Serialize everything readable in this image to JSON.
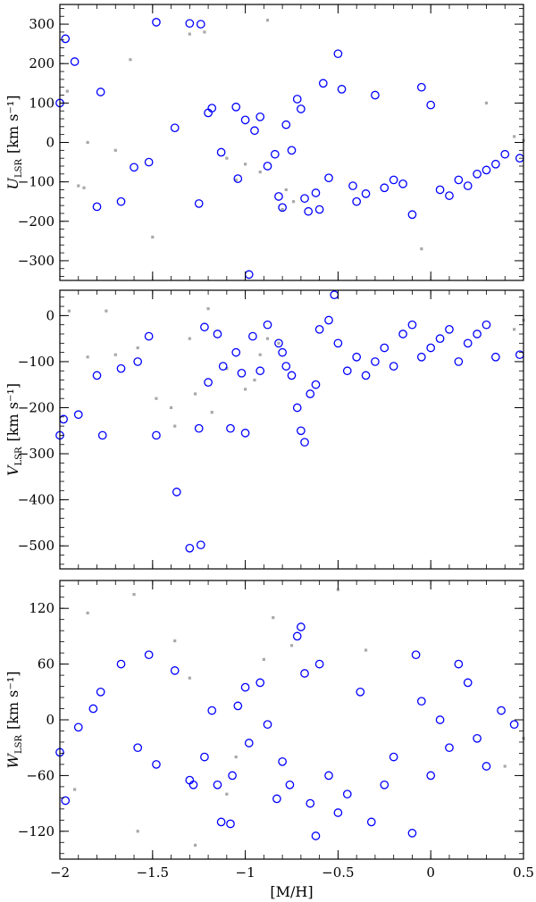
{
  "chart_data": [
    {
      "type": "scatter",
      "panel": "top",
      "ylabel_main": "U",
      "ylabel_sub": "LSR",
      "ylabel_unit": "[km s⁻¹]",
      "xlim": [
        -2.0,
        0.5
      ],
      "ylim": [
        -350,
        350
      ],
      "xticks": [
        -2,
        -1.5,
        -1,
        -0.5,
        0,
        0.5
      ],
      "yticks": [
        -300,
        -200,
        -100,
        0,
        100,
        200,
        300
      ],
      "ytick_labels": [
        "−300",
        "−200",
        "−100",
        "0",
        "100",
        "200",
        "300"
      ],
      "grid": false,
      "series": [
        {
          "marker": "open-circle",
          "color": "#0000ff",
          "points": [
            [
              -2.0,
              100
            ],
            [
              -1.97,
              263
            ],
            [
              -1.92,
              205
            ],
            [
              -1.78,
              128
            ],
            [
              -1.8,
              -163
            ],
            [
              -1.67,
              -150
            ],
            [
              -1.6,
              -63
            ],
            [
              -1.52,
              -50
            ],
            [
              -1.48,
              305
            ],
            [
              -1.38,
              37
            ],
            [
              -1.3,
              302
            ],
            [
              -1.24,
              300
            ],
            [
              -1.25,
              -155
            ],
            [
              -1.2,
              75
            ],
            [
              -1.18,
              87
            ],
            [
              -1.13,
              -25
            ],
            [
              -1.05,
              90
            ],
            [
              -1.04,
              -92
            ],
            [
              -1.0,
              57
            ],
            [
              -0.98,
              -335
            ],
            [
              -0.95,
              30
            ],
            [
              -0.92,
              65
            ],
            [
              -0.88,
              -60
            ],
            [
              -0.84,
              -30
            ],
            [
              -0.82,
              -137
            ],
            [
              -0.8,
              -165
            ],
            [
              -0.78,
              45
            ],
            [
              -0.75,
              -20
            ],
            [
              -0.72,
              110
            ],
            [
              -0.7,
              85
            ],
            [
              -0.68,
              -142
            ],
            [
              -0.66,
              -175
            ],
            [
              -0.62,
              -128
            ],
            [
              -0.6,
              -170
            ],
            [
              -0.58,
              150
            ],
            [
              -0.55,
              -90
            ],
            [
              -0.5,
              225
            ],
            [
              -0.48,
              135
            ],
            [
              -0.42,
              -110
            ],
            [
              -0.4,
              -150
            ],
            [
              -0.35,
              -130
            ],
            [
              -0.3,
              120
            ],
            [
              -0.25,
              -115
            ],
            [
              -0.2,
              -95
            ],
            [
              -0.15,
              -105
            ],
            [
              -0.1,
              -183
            ],
            [
              -0.05,
              140
            ],
            [
              0.0,
              95
            ],
            [
              0.05,
              -120
            ],
            [
              0.1,
              -135
            ],
            [
              0.15,
              -95
            ],
            [
              0.2,
              -110
            ],
            [
              0.25,
              -80
            ],
            [
              0.3,
              -70
            ],
            [
              0.35,
              -55
            ],
            [
              0.4,
              -30
            ],
            [
              0.48,
              -40
            ]
          ]
        },
        {
          "marker": "small-square",
          "color": "#a8a8a8",
          "points": [
            [
              -1.96,
              130
            ],
            [
              -1.9,
              -110
            ],
            [
              -1.87,
              -115
            ],
            [
              -1.85,
              0
            ],
            [
              -1.7,
              -20
            ],
            [
              -1.62,
              210
            ],
            [
              -1.5,
              -240
            ],
            [
              -1.3,
              275
            ],
            [
              -1.22,
              280
            ],
            [
              -1.1,
              -40
            ],
            [
              -1.05,
              -95
            ],
            [
              -1.0,
              -55
            ],
            [
              -0.92,
              -75
            ],
            [
              -0.88,
              310
            ],
            [
              -0.8,
              -170
            ],
            [
              -0.78,
              -120
            ],
            [
              -0.74,
              -150
            ],
            [
              -0.05,
              -270
            ],
            [
              0.3,
              100
            ],
            [
              0.45,
              15
            ],
            [
              0.5,
              5
            ]
          ]
        }
      ]
    },
    {
      "type": "scatter",
      "panel": "middle",
      "ylabel_main": "V",
      "ylabel_sub": "LSR",
      "ylabel_unit": "[km s⁻¹]",
      "xlim": [
        -2.0,
        0.5
      ],
      "ylim": [
        -550,
        55
      ],
      "xticks": [
        -2,
        -1.5,
        -1,
        -0.5,
        0,
        0.5
      ],
      "yticks": [
        -500,
        -400,
        -300,
        -200,
        -100,
        0
      ],
      "ytick_labels": [
        "−500",
        "−400",
        "−300",
        "−200",
        "−100",
        "0"
      ],
      "grid": false,
      "series": [
        {
          "marker": "open-circle",
          "color": "#0000ff",
          "points": [
            [
              -2.0,
              -260
            ],
            [
              -1.98,
              -225
            ],
            [
              -1.9,
              -215
            ],
            [
              -1.8,
              -130
            ],
            [
              -1.77,
              -260
            ],
            [
              -1.67,
              -115
            ],
            [
              -1.58,
              -100
            ],
            [
              -1.52,
              -45
            ],
            [
              -1.48,
              -260
            ],
            [
              -1.37,
              -383
            ],
            [
              -1.3,
              -505
            ],
            [
              -1.24,
              -498
            ],
            [
              -1.25,
              -245
            ],
            [
              -1.22,
              -25
            ],
            [
              -1.2,
              -145
            ],
            [
              -1.15,
              -40
            ],
            [
              -1.12,
              -110
            ],
            [
              -1.08,
              -245
            ],
            [
              -1.05,
              -80
            ],
            [
              -1.02,
              -125
            ],
            [
              -1.0,
              -255
            ],
            [
              -0.96,
              -45
            ],
            [
              -0.92,
              -120
            ],
            [
              -0.88,
              -20
            ],
            [
              -0.82,
              -60
            ],
            [
              -0.8,
              -80
            ],
            [
              -0.78,
              -110
            ],
            [
              -0.75,
              -130
            ],
            [
              -0.72,
              -200
            ],
            [
              -0.7,
              -250
            ],
            [
              -0.68,
              -275
            ],
            [
              -0.65,
              -170
            ],
            [
              -0.62,
              -150
            ],
            [
              -0.6,
              -30
            ],
            [
              -0.55,
              -10
            ],
            [
              -0.52,
              45
            ],
            [
              -0.5,
              -60
            ],
            [
              -0.45,
              -120
            ],
            [
              -0.4,
              -90
            ],
            [
              -0.35,
              -130
            ],
            [
              -0.3,
              -100
            ],
            [
              -0.25,
              -70
            ],
            [
              -0.2,
              -110
            ],
            [
              -0.15,
              -40
            ],
            [
              -0.1,
              -20
            ],
            [
              -0.05,
              -90
            ],
            [
              0.0,
              -70
            ],
            [
              0.05,
              -50
            ],
            [
              0.1,
              -30
            ],
            [
              0.15,
              -100
            ],
            [
              0.2,
              -60
            ],
            [
              0.25,
              -40
            ],
            [
              0.3,
              -20
            ],
            [
              0.35,
              -90
            ],
            [
              0.48,
              -85
            ]
          ]
        },
        {
          "marker": "small-square",
          "color": "#a8a8a8",
          "points": [
            [
              -1.95,
              10
            ],
            [
              -1.85,
              -90
            ],
            [
              -1.75,
              10
            ],
            [
              -1.7,
              -85
            ],
            [
              -1.58,
              -70
            ],
            [
              -1.48,
              -180
            ],
            [
              -1.4,
              -200
            ],
            [
              -1.38,
              -240
            ],
            [
              -1.3,
              -50
            ],
            [
              -1.27,
              -170
            ],
            [
              -1.2,
              15
            ],
            [
              -1.18,
              -210
            ],
            [
              -1.1,
              -115
            ],
            [
              -1.0,
              -160
            ],
            [
              -0.95,
              -140
            ],
            [
              -0.92,
              -85
            ],
            [
              -0.88,
              -50
            ],
            [
              -0.82,
              -60
            ],
            [
              0.45,
              -30
            ],
            [
              0.5,
              -10
            ]
          ]
        }
      ]
    },
    {
      "type": "scatter",
      "panel": "bottom",
      "ylabel_main": "W",
      "ylabel_sub": "LSR",
      "ylabel_unit": "[km s⁻¹]",
      "xlabel": "[M/H]",
      "xlim": [
        -2.0,
        0.5
      ],
      "ylim": [
        -150,
        150
      ],
      "xticks": [
        -2,
        -1.5,
        -1,
        -0.5,
        0,
        0.5
      ],
      "xtick_labels": [
        "−2",
        "−1.5",
        "−1",
        "−0.5",
        "0",
        "0.5"
      ],
      "yticks": [
        -120,
        -60,
        0,
        60,
        120
      ],
      "ytick_labels": [
        "−120",
        "−60",
        "0",
        "60",
        "120"
      ],
      "grid": false,
      "series": [
        {
          "marker": "open-circle",
          "color": "#0000ff",
          "points": [
            [
              -2.0,
              -35
            ],
            [
              -1.97,
              -87
            ],
            [
              -1.9,
              -8
            ],
            [
              -1.82,
              12
            ],
            [
              -1.78,
              30
            ],
            [
              -1.67,
              60
            ],
            [
              -1.58,
              -30
            ],
            [
              -1.52,
              70
            ],
            [
              -1.48,
              -48
            ],
            [
              -1.38,
              53
            ],
            [
              -1.3,
              -65
            ],
            [
              -1.28,
              -70
            ],
            [
              -1.22,
              -40
            ],
            [
              -1.18,
              10
            ],
            [
              -1.15,
              -70
            ],
            [
              -1.13,
              -110
            ],
            [
              -1.08,
              -112
            ],
            [
              -1.07,
              -60
            ],
            [
              -1.04,
              15
            ],
            [
              -1.0,
              35
            ],
            [
              -0.98,
              -25
            ],
            [
              -0.92,
              40
            ],
            [
              -0.88,
              -5
            ],
            [
              -0.83,
              -85
            ],
            [
              -0.8,
              -45
            ],
            [
              -0.76,
              -70
            ],
            [
              -0.72,
              90
            ],
            [
              -0.7,
              100
            ],
            [
              -0.68,
              50
            ],
            [
              -0.65,
              -90
            ],
            [
              -0.62,
              -125
            ],
            [
              -0.6,
              60
            ],
            [
              -0.55,
              -60
            ],
            [
              -0.5,
              -100
            ],
            [
              -0.45,
              -80
            ],
            [
              -0.38,
              30
            ],
            [
              -0.32,
              -110
            ],
            [
              -0.25,
              -70
            ],
            [
              -0.2,
              -40
            ],
            [
              -0.1,
              -122
            ],
            [
              -0.08,
              70
            ],
            [
              -0.05,
              20
            ],
            [
              0.0,
              -60
            ],
            [
              0.05,
              0
            ],
            [
              0.1,
              -30
            ],
            [
              0.15,
              60
            ],
            [
              0.2,
              40
            ],
            [
              0.25,
              -20
            ],
            [
              0.3,
              -50
            ],
            [
              0.38,
              10
            ],
            [
              0.45,
              -5
            ]
          ]
        },
        {
          "marker": "small-square",
          "color": "#a8a8a8",
          "points": [
            [
              -1.92,
              -75
            ],
            [
              -1.85,
              115
            ],
            [
              -1.6,
              135
            ],
            [
              -1.58,
              -120
            ],
            [
              -1.38,
              85
            ],
            [
              -1.3,
              45
            ],
            [
              -1.27,
              -135
            ],
            [
              -1.1,
              -80
            ],
            [
              -1.05,
              -40
            ],
            [
              -0.9,
              65
            ],
            [
              -0.85,
              110
            ],
            [
              -0.75,
              80
            ],
            [
              -0.5,
              140
            ],
            [
              -0.35,
              75
            ],
            [
              0.4,
              -50
            ],
            [
              0.5,
              -20
            ]
          ]
        }
      ]
    }
  ]
}
